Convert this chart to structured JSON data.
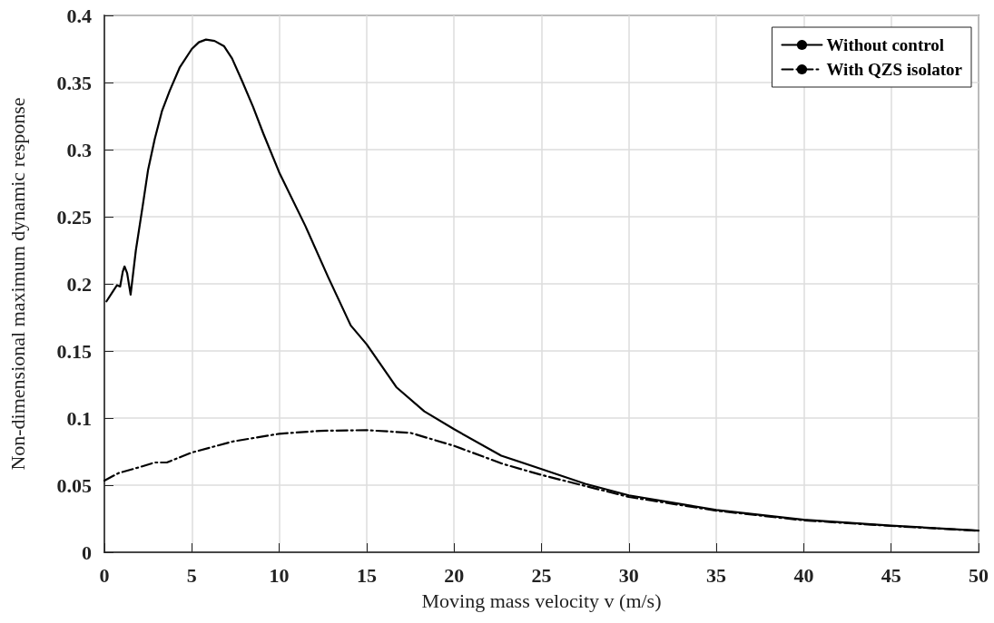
{
  "chart_data": {
    "type": "line",
    "xlabel": "Moving mass velocity v (m/s)",
    "ylabel": "Non-dimensional maximum dynamic response",
    "xlim": [
      0,
      50
    ],
    "xticks": [
      0,
      5,
      10,
      15,
      20,
      25,
      30,
      35,
      40,
      45,
      50
    ],
    "ylim": [
      0,
      0.4
    ],
    "yticks": [
      0,
      0.05,
      0.1,
      0.15,
      0.2,
      0.25,
      0.3,
      0.35,
      0.4
    ],
    "grid": true,
    "legend": "top right",
    "marker": "none",
    "series": [
      {
        "name": "Without control",
        "color": "#000000",
        "line_style": "solid",
        "x": [
          0.12,
          0.47,
          0.72,
          0.9,
          1.05,
          1.15,
          1.3,
          1.5,
          1.8,
          2.19,
          2.5,
          2.88,
          3.3,
          3.74,
          4.3,
          5,
          5.4,
          5.81,
          6.3,
          6.85,
          7.3,
          7.88,
          8.5,
          9.09,
          10,
          11.5,
          12.8,
          14.09,
          15,
          16.7,
          18.3,
          20,
          22.7,
          25,
          27.5,
          30,
          35,
          40,
          45,
          50
        ],
        "values": [
          0.187,
          0.194,
          0.199,
          0.198,
          0.209,
          0.213,
          0.208,
          0.192,
          0.225,
          0.258,
          0.285,
          0.308,
          0.329,
          0.344,
          0.361,
          0.375,
          0.38,
          0.382,
          0.381,
          0.377,
          0.368,
          0.351,
          0.332,
          0.312,
          0.283,
          0.243,
          0.205,
          0.169,
          0.155,
          0.123,
          0.105,
          0.0917,
          0.072,
          0.062,
          0.051,
          0.0424,
          0.0315,
          0.0243,
          0.0199,
          0.0161
        ]
      },
      {
        "name": "With QZS isolator",
        "color": "#000000",
        "line_style": "dashdot",
        "x": [
          0,
          0.81,
          1.85,
          2.88,
          3.57,
          5,
          7.36,
          10,
          12.36,
          15,
          17.5,
          20,
          22.8,
          25,
          30,
          35,
          40,
          45,
          50
        ],
        "values": [
          0.0534,
          0.059,
          0.0628,
          0.0669,
          0.0669,
          0.0743,
          0.0826,
          0.0883,
          0.0905,
          0.091,
          0.089,
          0.0793,
          0.0658,
          0.0576,
          0.0412,
          0.031,
          0.0238,
          0.0196,
          0.016
        ]
      }
    ]
  }
}
